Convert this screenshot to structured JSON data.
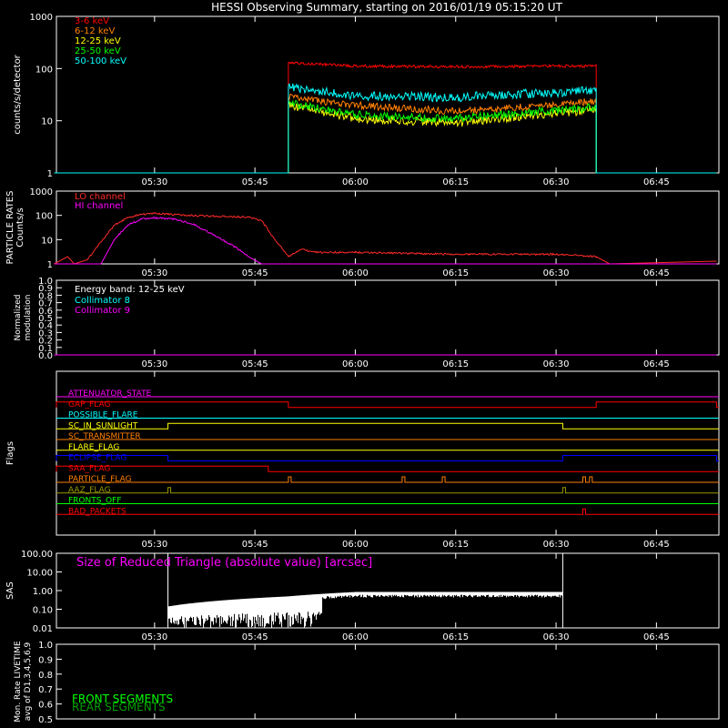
{
  "title": "HESSI Observing Summary, starting on 2016/01/19 05:15:20 UT",
  "time_ticks": [
    "05:30",
    "05:45",
    "06:00",
    "06:15",
    "06:30",
    "06:45"
  ],
  "colors": {
    "background": "#000000",
    "axes": "#ffffff",
    "red": "#ff0000",
    "orange": "#ff7f00",
    "yellow": "#ffff00",
    "green": "#00ff00",
    "cyan": "#00ffff",
    "magenta": "#ff00ff",
    "crimson": "#ff2a2a",
    "blue": "#0000ff",
    "olive": "#9a9a00",
    "darkgreen": "#00a000"
  },
  "chart_data": [
    {
      "id": "counts",
      "type": "line",
      "ylabel": "counts/s/detector",
      "yscale": "log",
      "ylim": [
        1,
        1000
      ],
      "yticks": [
        "1",
        "10",
        "100",
        "1000"
      ],
      "x_unit": "UT time",
      "legend_position": "top-left",
      "series": [
        {
          "name": "3-6 keV",
          "color": "#ff0000",
          "values": [
            {
              "x": "05:15",
              "y": 1
            },
            {
              "x": "05:50",
              "y": 1
            },
            {
              "x": "05:50",
              "y": 130
            },
            {
              "x": "06:00",
              "y": 112
            },
            {
              "x": "06:15",
              "y": 108
            },
            {
              "x": "06:30",
              "y": 112
            },
            {
              "x": "06:36",
              "y": 112
            },
            {
              "x": "06:36",
              "y": 1
            },
            {
              "x": "06:54",
              "y": 1
            }
          ]
        },
        {
          "name": "6-12 keV",
          "color": "#ff7f00",
          "values": [
            {
              "x": "05:15",
              "y": 1
            },
            {
              "x": "05:50",
              "y": 1
            },
            {
              "x": "05:50",
              "y": 28
            },
            {
              "x": "06:00",
              "y": 20
            },
            {
              "x": "06:15",
              "y": 15
            },
            {
              "x": "06:30",
              "y": 20
            },
            {
              "x": "06:36",
              "y": 24
            },
            {
              "x": "06:36",
              "y": 1
            },
            {
              "x": "06:54",
              "y": 1
            }
          ]
        },
        {
          "name": "12-25 keV",
          "color": "#ffff00",
          "values": [
            {
              "x": "05:15",
              "y": 1
            },
            {
              "x": "05:50",
              "y": 1
            },
            {
              "x": "05:50",
              "y": 20
            },
            {
              "x": "06:00",
              "y": 11
            },
            {
              "x": "06:15",
              "y": 9
            },
            {
              "x": "06:30",
              "y": 14
            },
            {
              "x": "06:36",
              "y": 16
            },
            {
              "x": "06:36",
              "y": 1
            },
            {
              "x": "06:54",
              "y": 1
            }
          ]
        },
        {
          "name": "25-50 keV",
          "color": "#00ff00",
          "values": [
            {
              "x": "05:15",
              "y": 1
            },
            {
              "x": "05:50",
              "y": 1
            },
            {
              "x": "05:50",
              "y": 22
            },
            {
              "x": "06:00",
              "y": 13
            },
            {
              "x": "06:15",
              "y": 11
            },
            {
              "x": "06:30",
              "y": 16
            },
            {
              "x": "06:36",
              "y": 18
            },
            {
              "x": "06:36",
              "y": 1
            },
            {
              "x": "06:54",
              "y": 1
            }
          ]
        },
        {
          "name": "50-100 keV",
          "color": "#00ffff",
          "values": [
            {
              "x": "05:15",
              "y": 1
            },
            {
              "x": "05:50",
              "y": 1
            },
            {
              "x": "05:50",
              "y": 45
            },
            {
              "x": "06:00",
              "y": 30
            },
            {
              "x": "06:15",
              "y": 28
            },
            {
              "x": "06:30",
              "y": 35
            },
            {
              "x": "06:36",
              "y": 38
            },
            {
              "x": "06:36",
              "y": 1
            },
            {
              "x": "06:54",
              "y": 1
            }
          ]
        }
      ]
    },
    {
      "id": "particle",
      "type": "line",
      "ylabel": "PARTICLE RATES Counts/s",
      "yscale": "log",
      "ylim": [
        1,
        1000
      ],
      "yticks": [
        "1",
        "10",
        "100",
        "1000"
      ],
      "legend_position": "top-left",
      "series": [
        {
          "name": "LO channel",
          "color": "#ff2a2a",
          "values": [
            {
              "x": "05:15",
              "y": 1
            },
            {
              "x": "05:17",
              "y": 2
            },
            {
              "x": "05:18",
              "y": 1
            },
            {
              "x": "05:20",
              "y": 1.5
            },
            {
              "x": "05:22",
              "y": 8
            },
            {
              "x": "05:24",
              "y": 40
            },
            {
              "x": "05:26",
              "y": 80
            },
            {
              "x": "05:28",
              "y": 110
            },
            {
              "x": "05:30",
              "y": 120
            },
            {
              "x": "05:35",
              "y": 100
            },
            {
              "x": "05:40",
              "y": 90
            },
            {
              "x": "05:44",
              "y": 85
            },
            {
              "x": "05:46",
              "y": 60
            },
            {
              "x": "05:48",
              "y": 10
            },
            {
              "x": "05:50",
              "y": 2
            },
            {
              "x": "05:52",
              "y": 4
            },
            {
              "x": "05:54",
              "y": 3
            },
            {
              "x": "06:00",
              "y": 3
            },
            {
              "x": "06:15",
              "y": 2.5
            },
            {
              "x": "06:30",
              "y": 2.5
            },
            {
              "x": "06:36",
              "y": 2
            },
            {
              "x": "06:38",
              "y": 1
            },
            {
              "x": "06:54",
              "y": 1.3
            }
          ]
        },
        {
          "name": "HI channel",
          "color": "#ff00ff",
          "values": [
            {
              "x": "05:15",
              "y": 1
            },
            {
              "x": "05:22",
              "y": 1
            },
            {
              "x": "05:24",
              "y": 10
            },
            {
              "x": "05:26",
              "y": 40
            },
            {
              "x": "05:28",
              "y": 70
            },
            {
              "x": "05:30",
              "y": 80
            },
            {
              "x": "05:33",
              "y": 70
            },
            {
              "x": "05:36",
              "y": 40
            },
            {
              "x": "05:39",
              "y": 15
            },
            {
              "x": "05:42",
              "y": 5
            },
            {
              "x": "05:44",
              "y": 2
            },
            {
              "x": "05:46",
              "y": 1
            },
            {
              "x": "06:54",
              "y": 1
            }
          ]
        }
      ]
    },
    {
      "id": "modulation",
      "type": "line",
      "ylabel": "Normalized modulation",
      "ylim": [
        0,
        1
      ],
      "yticks": [
        "0.0",
        "0.1",
        "0.2",
        "0.3",
        "0.4",
        "0.5",
        "0.6",
        "0.7",
        "0.8",
        "0.9",
        "1.0"
      ],
      "annotation": "Energy band: 12-25 keV",
      "legend_position": "top-left",
      "series": [
        {
          "name": "Collimator 8",
          "color": "#00ffff",
          "values": [
            {
              "x": "05:15",
              "y": 0
            },
            {
              "x": "06:54",
              "y": 0
            }
          ]
        },
        {
          "name": "Collimator 9",
          "color": "#ff00ff",
          "values": [
            {
              "x": "05:15",
              "y": 0
            },
            {
              "x": "06:54",
              "y": 0
            }
          ]
        }
      ]
    },
    {
      "id": "flags",
      "type": "line",
      "ylabel": "Flags",
      "series": [
        {
          "name": "ATTENUATOR_STATE",
          "color": "#ff00ff",
          "on_intervals": []
        },
        {
          "name": "GAP_FLAG",
          "color": "#ff0000",
          "on_intervals": [
            [
              "05:15",
              "05:50"
            ],
            [
              "06:36",
              "06:54"
            ]
          ]
        },
        {
          "name": "POSSIBLE_FLARE",
          "color": "#00ffff",
          "on_intervals": []
        },
        {
          "name": "SC_IN_SUNLIGHT",
          "color": "#ffff00",
          "on_intervals": [
            [
              "05:32",
              "06:31"
            ]
          ]
        },
        {
          "name": "SC_TRANSMITTER",
          "color": "#ff7f00",
          "on_intervals": []
        },
        {
          "name": "FLARE_FLAG",
          "color": "#ffff00",
          "on_intervals": []
        },
        {
          "name": "ECLIPSE_FLAG",
          "color": "#0000ff",
          "on_intervals": [
            [
              "05:15",
              "05:32"
            ],
            [
              "06:31",
              "06:54"
            ]
          ]
        },
        {
          "name": "SAA_FLAG",
          "color": "#ff0000",
          "on_intervals": [
            [
              "05:15",
              "05:47"
            ]
          ]
        },
        {
          "name": "PARTICLE_FLAG",
          "color": "#ff7f00",
          "on_intervals": [
            [
              "05:50",
              "05:50"
            ],
            [
              "06:07",
              "06:07"
            ],
            [
              "06:13",
              "06:13"
            ],
            [
              "06:34",
              "06:34"
            ],
            [
              "06:35",
              "06:35"
            ]
          ]
        },
        {
          "name": "AAZ_FLAG",
          "color": "#9a9a00",
          "on_intervals": [
            [
              "05:32",
              "05:32"
            ],
            [
              "06:31",
              "06:31"
            ]
          ]
        },
        {
          "name": "FRONTS_OFF",
          "color": "#00ff00",
          "on_intervals": []
        },
        {
          "name": "BAD_PACKETS",
          "color": "#ff0000",
          "on_intervals": [
            [
              "06:34",
              "06:34"
            ]
          ]
        }
      ]
    },
    {
      "id": "sas",
      "type": "line",
      "ylabel": "SAS",
      "yscale": "log",
      "ylim": [
        0.01,
        100
      ],
      "yticks": [
        "0.01",
        "0.10",
        "1.00",
        "10.00",
        "100.00"
      ],
      "annotation": "Size of Reduced Triangle (absolute value) [arcsec]",
      "series": [
        {
          "name": "",
          "color": "#ffffff",
          "values": [
            {
              "x": "05:32",
              "y": 100
            },
            {
              "x": "05:32",
              "y": 0.5
            },
            {
              "x": "05:35",
              "y": 0.1
            },
            {
              "x": "05:40",
              "y": 0.12
            },
            {
              "x": "05:45",
              "y": 0.15
            },
            {
              "x": "05:50",
              "y": 0.3
            },
            {
              "x": "05:55",
              "y": 0.5
            },
            {
              "x": "06:00",
              "y": 0.6
            },
            {
              "x": "06:15",
              "y": 0.6
            },
            {
              "x": "06:30",
              "y": 0.6
            },
            {
              "x": "06:31",
              "y": 100
            }
          ]
        }
      ]
    },
    {
      "id": "livetime",
      "type": "line",
      "ylabel": "Mon. Rate LIVETIME avg of D1,3,4,5,6,9",
      "ylim": [
        0.5,
        1
      ],
      "yticks": [
        "0.5",
        "0.6",
        "0.7",
        "0.8",
        "0.9",
        "1.0"
      ],
      "legend_position": "bottom-left",
      "series": [
        {
          "name": "FRONT SEGMENTS",
          "color": "#00ff00",
          "values": []
        },
        {
          "name": "REAR SEGMENTS",
          "color": "#00a000",
          "values": []
        }
      ]
    }
  ]
}
